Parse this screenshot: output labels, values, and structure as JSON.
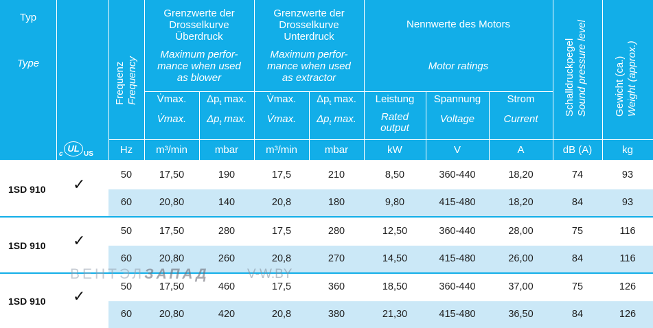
{
  "header": {
    "typ": "Typ",
    "type": "Type",
    "freq_de": "Frequenz",
    "freq_en": "Frequency",
    "blower_de": [
      "Grenzwerte der",
      "Drosselkurve",
      "Überdruck"
    ],
    "blower_en": [
      "Maximum perfor-",
      "mance when used",
      "as blower"
    ],
    "extractor_de": [
      "Grenzwerte der",
      "Drosselkurve",
      "Unterdruck"
    ],
    "extractor_en": [
      "Maximum perfor-",
      "mance when used",
      "as extractor"
    ],
    "motor_de": "Nennwerte des Motors",
    "motor_en": "Motor ratings",
    "sound_de": "Schalldruckpegel",
    "sound_en": "Sound pressure level",
    "weight_de": "Gewicht (ca.)",
    "weight_en": "Weight (approx.)",
    "vmax": "V̇max.",
    "vmax_it": "V̇max.",
    "dp_pre": "Δp",
    "dp_sub": "t",
    "dp_post": " max.",
    "leistung": "Leistung",
    "rated_output": [
      "Rated",
      "output"
    ],
    "spannung": "Spannung",
    "voltage": "Voltage",
    "strom": "Strom",
    "current": "Current",
    "cert_c": "c",
    "cert_ul": "UL",
    "cert_us": "US"
  },
  "units": [
    "Hz",
    "m³/min",
    "mbar",
    "m³/min",
    "mbar",
    "kW",
    "V",
    "A",
    "dB (A)",
    "kg"
  ],
  "groups": [
    {
      "type": "1SD 910",
      "check": "✓",
      "rows": [
        [
          "50",
          "17,50",
          "190",
          "17,5",
          "210",
          "8,50",
          "360-440",
          "18,20",
          "74",
          "93"
        ],
        [
          "60",
          "20,80",
          "140",
          "20,8",
          "180",
          "9,80",
          "415-480",
          "18,20",
          "84",
          "93"
        ]
      ]
    },
    {
      "type": "1SD 910",
      "check": "✓",
      "rows": [
        [
          "50",
          "17,50",
          "280",
          "17,5",
          "280",
          "12,50",
          "360-440",
          "28,00",
          "75",
          "116"
        ],
        [
          "60",
          "20,80",
          "260",
          "20,8",
          "270",
          "14,50",
          "415-480",
          "26,00",
          "84",
          "116"
        ]
      ]
    },
    {
      "type": "1SD 910",
      "check": "✓",
      "rows": [
        [
          "50",
          "17,50",
          "460",
          "17,5",
          "360",
          "18,50",
          "360-440",
          "37,00",
          "75",
          "126"
        ],
        [
          "60",
          "20,80",
          "420",
          "20,8",
          "380",
          "21,30",
          "415-480",
          "36,50",
          "84",
          "126"
        ]
      ]
    }
  ],
  "watermark": {
    "part1": "ВЕНТЭЛ",
    "part2": "ЗАПАД",
    "site": "V-W.BY"
  }
}
